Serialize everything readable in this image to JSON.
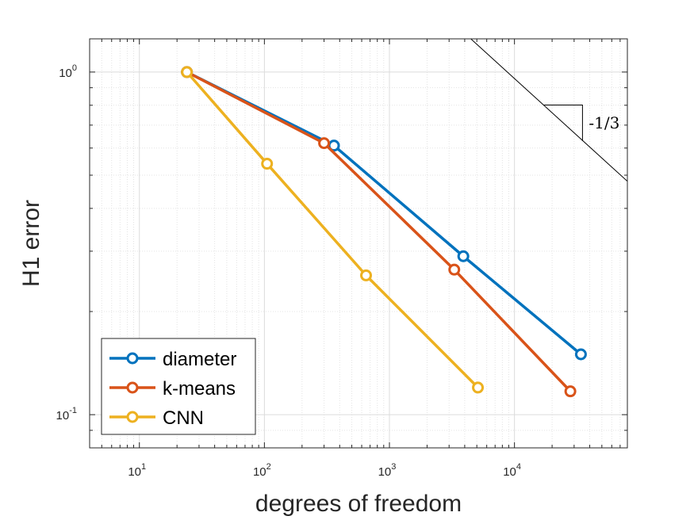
{
  "chart_data": {
    "type": "line",
    "scale": {
      "x": "log",
      "y": "log"
    },
    "xlim": [
      4,
      80000
    ],
    "ylim": [
      0.08,
      1.25
    ],
    "grid": true,
    "minor_grid": true,
    "xlabel": "degrees of freedom",
    "ylabel": "H1 error",
    "x_ticks": [
      {
        "base": "10",
        "exp": "1",
        "value": 10
      },
      {
        "base": "10",
        "exp": "2",
        "value": 100
      },
      {
        "base": "10",
        "exp": "3",
        "value": 1000
      },
      {
        "base": "10",
        "exp": "4",
        "value": 10000
      }
    ],
    "y_ticks": [
      {
        "base": "10",
        "exp": "-1",
        "value": 0.1
      },
      {
        "base": "10",
        "exp": "0",
        "value": 1
      }
    ],
    "legend_position": "bottom-left",
    "series": [
      {
        "name": "diameter",
        "color": "#0072BD",
        "x": [
          24,
          360,
          3900,
          34000
        ],
        "y": [
          1.0,
          0.61,
          0.29,
          0.15
        ]
      },
      {
        "name": "k-means",
        "color": "#D95319",
        "x": [
          24,
          300,
          3300,
          28000
        ],
        "y": [
          1.0,
          0.62,
          0.265,
          0.117
        ]
      },
      {
        "name": "CNN",
        "color": "#EDB120",
        "x": [
          24,
          105,
          650,
          5100
        ],
        "y": [
          1.0,
          0.54,
          0.255,
          0.12
        ]
      }
    ],
    "slope_indicator": {
      "label": "-1/3",
      "slope": -0.3333,
      "line_color": "#000000",
      "line": {
        "x": [
          3800,
          80000
        ],
        "y": [
          1.32,
          0.48
        ]
      },
      "triangle_x": [
        17000,
        35000
      ]
    }
  }
}
